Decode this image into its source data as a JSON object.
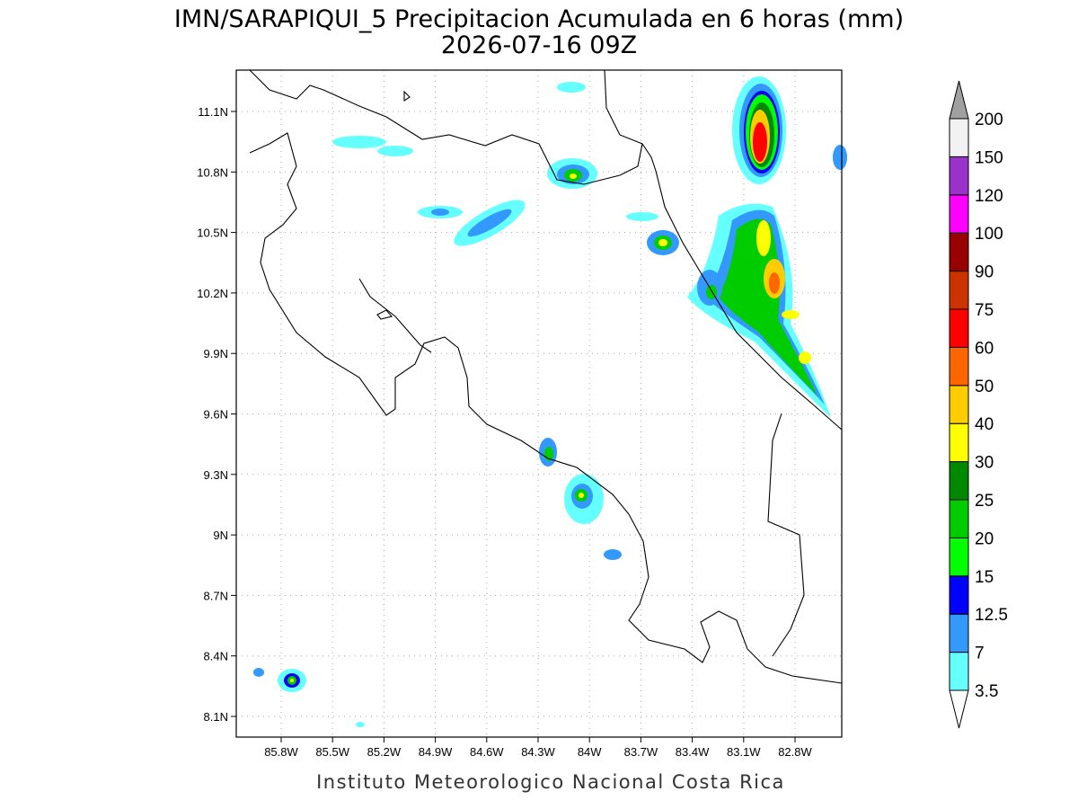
{
  "title": "IMN/SARAPIQUI_5 Precipitacion Acumulada en 6 horas (mm)",
  "subtitle": "2026-07-16 09Z",
  "map": {
    "xticks": [
      "85.8W",
      "85.5W",
      "85.2W",
      "84.9W",
      "84.6W",
      "84.3W",
      "84W",
      "83.7W",
      "83.4W",
      "83.1W",
      "82.8W"
    ],
    "yticks": [
      "11.1N",
      "10.8N",
      "10.5N",
      "10.2N",
      "9.9N",
      "9.6N",
      "9.3N",
      "9N",
      "8.7N",
      "8.4N",
      "8.1N"
    ]
  },
  "colorbar": {
    "levels": [
      3.5,
      7,
      12.5,
      15,
      20,
      25,
      30,
      40,
      50,
      60,
      75,
      90,
      100,
      120,
      150,
      200
    ],
    "colors": [
      "#66ffff",
      "#3399ff",
      "#0000ff",
      "#00ff00",
      "#00cc00",
      "#008800",
      "#ffff00",
      "#ffcc00",
      "#ff6600",
      "#ff0000",
      "#cc3300",
      "#990000",
      "#ff00ff",
      "#9933cc",
      "#f2f2f2"
    ],
    "under_color": "#ffffff",
    "over_color": "#a0a0a0"
  },
  "credit": "Instituto Meteorologico Nacional Costa Rica"
}
